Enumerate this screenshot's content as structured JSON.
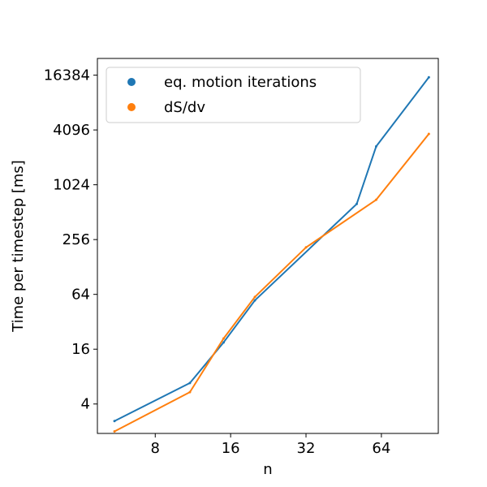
{
  "chart_data": {
    "type": "line",
    "xlabel": "n",
    "ylabel": "Time per timestep [ms]",
    "x_scale": "log2",
    "y_scale": "log2",
    "xlim": [
      4.7,
      108
    ],
    "ylim": [
      1.9,
      25000
    ],
    "x_ticks": [
      {
        "value": 8,
        "label": "8"
      },
      {
        "value": 16,
        "label": "16"
      },
      {
        "value": 32,
        "label": "32"
      },
      {
        "value": 64,
        "label": "64"
      }
    ],
    "y_ticks": [
      {
        "value": 4,
        "label": "4"
      },
      {
        "value": 16,
        "label": "16"
      },
      {
        "value": 64,
        "label": "64"
      },
      {
        "value": 256,
        "label": "256"
      },
      {
        "value": 1024,
        "label": "1024"
      },
      {
        "value": 4096,
        "label": "4096"
      },
      {
        "value": 16384,
        "label": "16384"
      }
    ],
    "legend_position": "top-left",
    "series": [
      {
        "name": "eq. motion iterations",
        "color": "#1f77b4",
        "x": [
          5.5,
          11,
          15,
          20,
          51,
          61,
          99
        ],
        "y": [
          2.6,
          6.8,
          19,
          55,
          630,
          2700,
          15500
        ]
      },
      {
        "name": "dS/dv",
        "color": "#ff7f0e",
        "x": [
          5.5,
          11,
          15,
          20,
          32,
          61,
          99
        ],
        "y": [
          2.0,
          5.4,
          21,
          60,
          210,
          700,
          3700
        ]
      }
    ]
  }
}
